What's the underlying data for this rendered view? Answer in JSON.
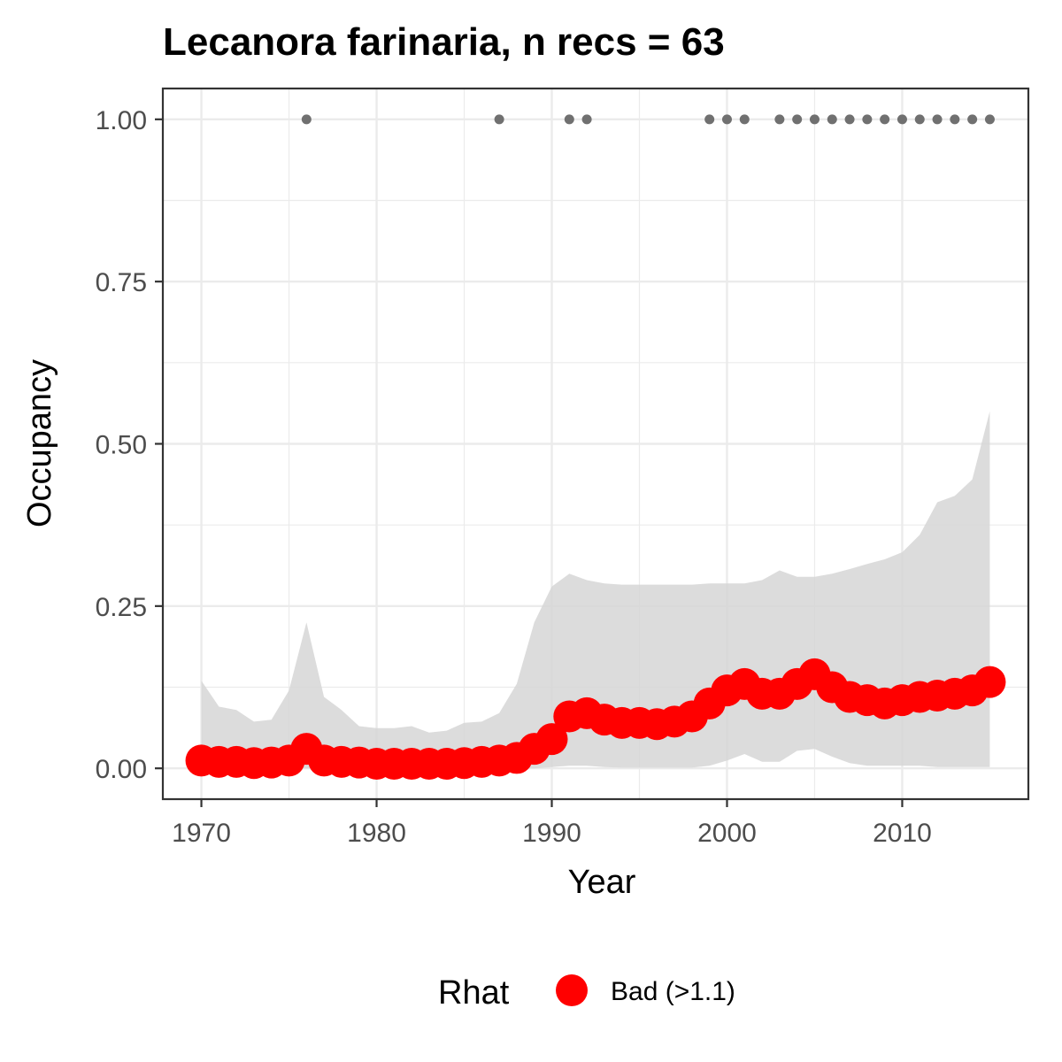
{
  "chart_data": {
    "type": "line",
    "title": "Lecanora farinaria, n recs = 63",
    "xlabel": "Year",
    "ylabel": "Occupancy",
    "xlim": [
      1967.8,
      2017.2
    ],
    "ylim": [
      -0.0475,
      1.0475
    ],
    "x_ticks": [
      1970,
      1980,
      1990,
      2000,
      2010
    ],
    "x_tick_labels": [
      "1970",
      "1980",
      "1990",
      "2000",
      "2010"
    ],
    "y_ticks": [
      0,
      0.25,
      0.5,
      0.75,
      1.0
    ],
    "y_tick_labels": [
      "0.00",
      "0.25",
      "0.50",
      "0.75",
      "1.00"
    ],
    "grid": true,
    "colors": {
      "mean": "#ff0000",
      "ribbon": "#d6d6d6",
      "records": "#707070",
      "grid_major": "#ebebeb",
      "panel_border": "#333333"
    },
    "x": [
      1970,
      1971,
      1972,
      1973,
      1974,
      1975,
      1976,
      1977,
      1978,
      1979,
      1980,
      1981,
      1982,
      1983,
      1984,
      1985,
      1986,
      1987,
      1988,
      1989,
      1990,
      1991,
      1992,
      1993,
      1994,
      1995,
      1996,
      1997,
      1998,
      1999,
      2000,
      2001,
      2002,
      2003,
      2004,
      2005,
      2006,
      2007,
      2008,
      2009,
      2010,
      2011,
      2012,
      2013,
      2014,
      2015
    ],
    "mean": [
      0.012,
      0.01,
      0.01,
      0.008,
      0.009,
      0.012,
      0.03,
      0.012,
      0.01,
      0.009,
      0.007,
      0.007,
      0.007,
      0.007,
      0.007,
      0.008,
      0.01,
      0.012,
      0.016,
      0.03,
      0.045,
      0.08,
      0.085,
      0.075,
      0.07,
      0.07,
      0.068,
      0.072,
      0.08,
      0.1,
      0.12,
      0.13,
      0.115,
      0.115,
      0.13,
      0.145,
      0.125,
      0.11,
      0.105,
      0.1,
      0.105,
      0.11,
      0.112,
      0.115,
      0.12,
      0.133
    ],
    "upper": [
      0.135,
      0.095,
      0.09,
      0.072,
      0.075,
      0.12,
      0.225,
      0.11,
      0.09,
      0.065,
      0.062,
      0.062,
      0.065,
      0.055,
      0.058,
      0.07,
      0.072,
      0.085,
      0.13,
      0.225,
      0.28,
      0.3,
      0.29,
      0.285,
      0.283,
      0.283,
      0.283,
      0.283,
      0.283,
      0.285,
      0.285,
      0.285,
      0.29,
      0.305,
      0.295,
      0.295,
      0.3,
      0.307,
      0.315,
      0.322,
      0.333,
      0.36,
      0.41,
      0.42,
      0.445,
      0.55
    ],
    "lower": [
      0,
      0,
      0,
      0,
      0,
      0,
      0,
      0,
      0,
      0,
      0,
      0,
      0,
      0,
      0,
      0,
      0,
      0,
      0,
      0,
      0.002,
      0.004,
      0.004,
      0.002,
      0.001,
      0.001,
      0.001,
      0.001,
      0.001,
      0.004,
      0.012,
      0.022,
      0.01,
      0.01,
      0.027,
      0.03,
      0.018,
      0.008,
      0.004,
      0.004,
      0.004,
      0.004,
      0.002,
      0.002,
      0.002,
      0.002
    ],
    "record_years": [
      1976,
      1987,
      1991,
      1992,
      1999,
      2000,
      2001,
      2003,
      2004,
      2005,
      2006,
      2007,
      2008,
      2009,
      2010,
      2011,
      2012,
      2013,
      2014,
      2015
    ],
    "record_value": 1.0,
    "legend": {
      "title": "Rhat",
      "entries": [
        {
          "label": "Bad (>1.1)",
          "color": "#ff0000"
        }
      ],
      "position": "bottom"
    }
  }
}
